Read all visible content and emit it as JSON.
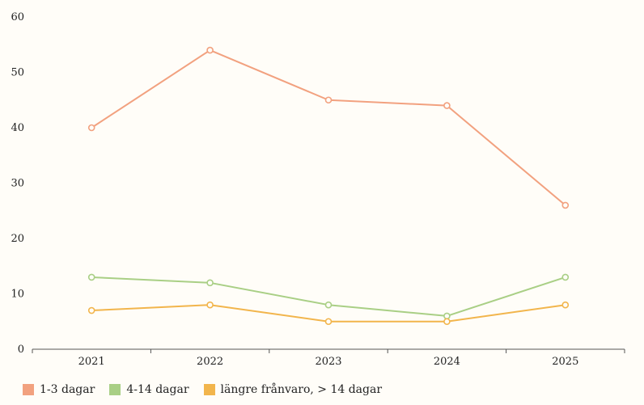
{
  "chart_data": {
    "type": "line",
    "title": "",
    "xlabel": "",
    "ylabel": "",
    "categories": [
      "2021",
      "2022",
      "2023",
      "2024",
      "2025"
    ],
    "ylim": [
      0,
      60
    ],
    "yticks": [
      "0",
      "10",
      "20",
      "30",
      "40",
      "50",
      "60"
    ],
    "grid": false,
    "legend_position": "bottom-left",
    "series": [
      {
        "name": "1-3 dagar",
        "color": "#f2a17f",
        "values": [
          40,
          54,
          45,
          44,
          26
        ]
      },
      {
        "name": "4-14 dagar",
        "color": "#a9cf85",
        "values": [
          13,
          12,
          8,
          6,
          13
        ]
      },
      {
        "name": "längre frånvaro, > 14 dagar",
        "color": "#f2b54c",
        "values": [
          7,
          8,
          5,
          5,
          8
        ]
      }
    ]
  }
}
